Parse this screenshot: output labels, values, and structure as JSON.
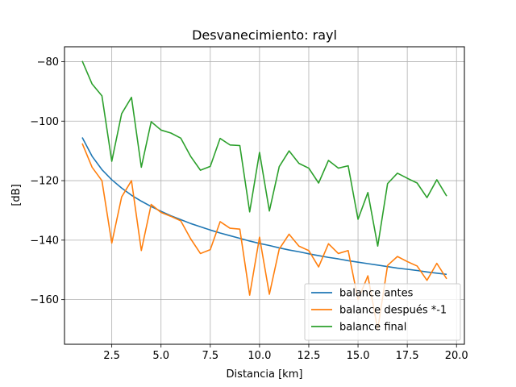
{
  "chart_data": {
    "type": "line",
    "title": "Desvanecimiento: rayl",
    "xlabel": "Distancia [km]",
    "ylabel": "[dB]",
    "xlim": [
      0.1,
      20.4
    ],
    "ylim": [
      -175,
      -75
    ],
    "xticks": [
      2.5,
      5.0,
      7.5,
      10.0,
      12.5,
      15.0,
      17.5,
      20.0
    ],
    "xtick_labels": [
      "2.5",
      "5.0",
      "7.5",
      "10.0",
      "12.5",
      "15.0",
      "17.5",
      "20.0"
    ],
    "yticks": [
      -80,
      -100,
      -120,
      -140,
      -160
    ],
    "ytick_labels": [
      "−80",
      "−100",
      "−120",
      "−140",
      "−160"
    ],
    "grid": true,
    "legend_position": "lower-right",
    "x": [
      1.0,
      1.5,
      2.0,
      2.5,
      3.0,
      3.5,
      4.0,
      4.5,
      5.0,
      5.5,
      6.0,
      6.5,
      7.0,
      7.5,
      8.0,
      8.5,
      9.0,
      9.5,
      10.0,
      10.5,
      11.0,
      11.5,
      12.0,
      12.5,
      13.0,
      13.5,
      14.0,
      14.5,
      15.0,
      15.5,
      16.0,
      16.5,
      17.0,
      17.5,
      18.0,
      18.5,
      19.0,
      19.5
    ],
    "series": [
      {
        "name": "balance antes",
        "color": "#1f77b4",
        "values": [
          -105.5,
          -111.8,
          -116.3,
          -119.7,
          -122.5,
          -124.9,
          -126.9,
          -128.7,
          -130.3,
          -131.8,
          -133.1,
          -134.4,
          -135.5,
          -136.6,
          -137.6,
          -138.5,
          -139.4,
          -140.3,
          -141.1,
          -141.8,
          -142.6,
          -143.3,
          -143.9,
          -144.6,
          -145.2,
          -145.8,
          -146.3,
          -146.9,
          -147.4,
          -147.9,
          -148.4,
          -148.9,
          -149.4,
          -149.8,
          -150.2,
          -150.7,
          -151.1,
          -151.5
        ]
      },
      {
        "name": "balance después *-1",
        "color": "#ff7f0e",
        "values": [
          -107.5,
          -115.5,
          -120.0,
          -141.0,
          -125.5,
          -120.0,
          -143.5,
          -128.0,
          -130.7,
          -132.0,
          -133.5,
          -139.5,
          -144.5,
          -143.2,
          -133.8,
          -136.0,
          -136.3,
          -158.5,
          -139.0,
          -158.2,
          -143.0,
          -138.0,
          -142.0,
          -143.5,
          -149.0,
          -141.2,
          -144.5,
          -143.5,
          -160.0,
          -152.0,
          -170.0,
          -148.5,
          -145.5,
          -147.2,
          -148.7,
          -153.5,
          -147.8,
          -153.0
        ]
      },
      {
        "name": "balance final",
        "color": "#2ca02c",
        "values": [
          -79.8,
          -87.5,
          -91.5,
          -113.5,
          -97.5,
          -92.0,
          -115.5,
          -100.2,
          -103.0,
          -104.0,
          -105.7,
          -111.8,
          -116.5,
          -115.2,
          -105.8,
          -108.0,
          -108.2,
          -130.5,
          -110.5,
          -130.2,
          -115.3,
          -110.0,
          -114.2,
          -115.8,
          -120.8,
          -113.2,
          -115.8,
          -115.0,
          -133.0,
          -124.0,
          -142.0,
          -121.0,
          -117.5,
          -119.2,
          -120.8,
          -125.7,
          -119.7,
          -125.2
        ]
      }
    ]
  }
}
